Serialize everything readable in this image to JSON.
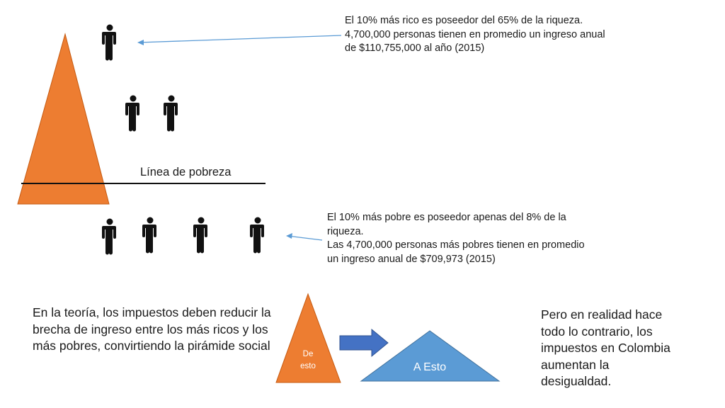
{
  "colors": {
    "orange": "#ED7D31",
    "orange_stroke": "#C55A11",
    "blue": "#5B9BD5",
    "blue_stroke": "#41719C",
    "arrow_blue": "#4472C4",
    "line_arrow": "#5B9BD5",
    "person": "#111111"
  },
  "icons": {
    "person": "person-icon",
    "block_arrow": "right-arrow-icon"
  },
  "poverty_line": {
    "label": "Línea de pobreza"
  },
  "rich_note": {
    "line1": "El 10% más rico es poseedor del 65% de la riqueza.",
    "line2": "4,700,000 personas tienen en promedio un ingreso anual",
    "line3": "de $110,755,000 al año (2015)"
  },
  "poor_note": {
    "line1": "El 10% más pobre es poseedor apenas del 8% de la",
    "line2": "riqueza.",
    "line3": "Las 4,700,000 personas más pobres tienen en promedio",
    "line4": "un ingreso anual de $709,973 (2015)"
  },
  "theory_text": {
    "line1": "En la teoría, los impuestos deben reducir la",
    "line2": "brecha de ingreso entre los más ricos y los",
    "line3": "más pobres, convirtiendo la pirámide social"
  },
  "reality_text": {
    "line1": "Pero en realidad hace",
    "line2": "todo lo contrario, los",
    "line3": "impuestos en Colombia",
    "line4": "aumentan la",
    "line5": "desigualdad."
  },
  "small_pyramid": {
    "label_line1": "De",
    "label_line2": "esto"
  },
  "wide_pyramid": {
    "label": "A Esto"
  }
}
